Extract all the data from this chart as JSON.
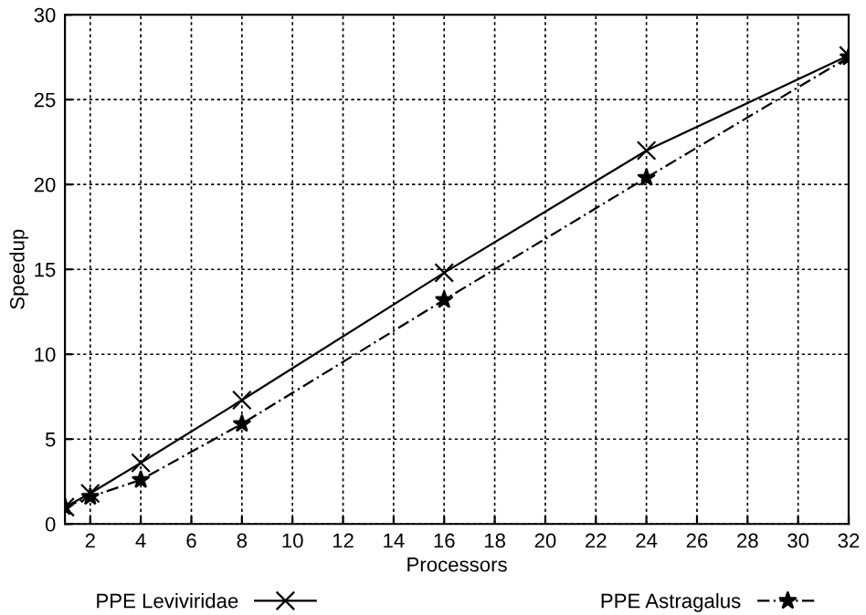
{
  "chart_data": {
    "type": "line",
    "xlabel": "Processors",
    "ylabel": "Speedup",
    "x": [
      1,
      2,
      4,
      8,
      16,
      24,
      32
    ],
    "series": [
      {
        "name": "PPE Leviviridae",
        "color": "#000000",
        "marker": "cross",
        "line_style": "solid",
        "values": [
          1,
          1.8,
          3.6,
          7.3,
          14.8,
          22,
          27.6
        ]
      },
      {
        "name": "PPE Astragalus",
        "color": "#000000",
        "marker": "star",
        "line_style": "dashed",
        "values": [
          1,
          1.6,
          2.6,
          5.9,
          13.2,
          20.4,
          27.5
        ]
      }
    ],
    "xlim": [
      1,
      32
    ],
    "ylim": [
      0,
      30
    ],
    "xticks": [
      2,
      4,
      6,
      8,
      10,
      12,
      14,
      16,
      18,
      20,
      22,
      24,
      26,
      28,
      30,
      32
    ],
    "yticks": [
      0,
      5,
      10,
      15,
      20,
      25,
      30
    ],
    "grid": true,
    "legend": "bottom"
  }
}
